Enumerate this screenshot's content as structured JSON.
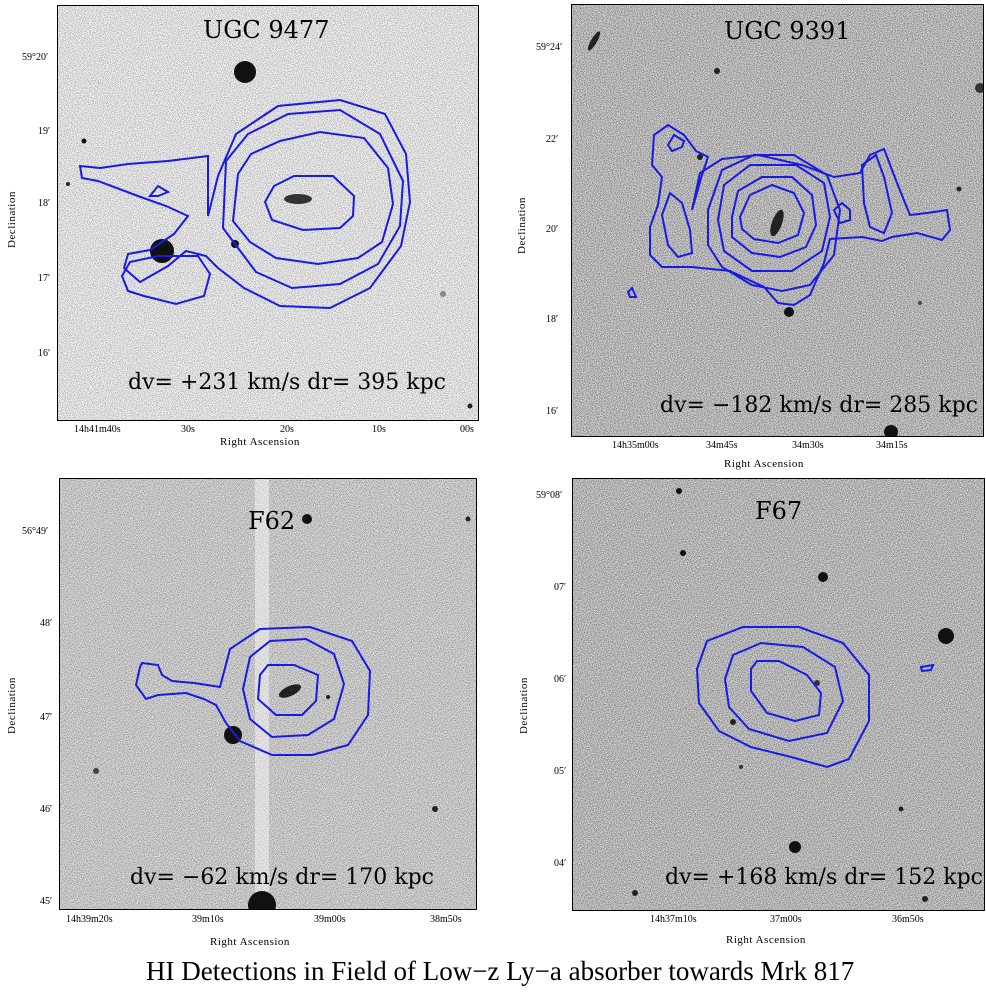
{
  "caption": "HI Detections in Field of Low−z Ly−a absorber towards Mrk 817",
  "contour_color": "#1a1ae6",
  "panels": [
    {
      "title": "UGC 9477",
      "measurement": "dv= +231 km/s  dr= 395 kpc",
      "xlabel": "Right Ascension",
      "ylabel": "Declination",
      "xticks": [
        "14h41m40s",
        "30s",
        "20s",
        "10s",
        "00s"
      ],
      "yticks": [
        "59°20′",
        "19′",
        "18′",
        "17′",
        "16′"
      ]
    },
    {
      "title": "UGC 9391",
      "measurement": "dv= −182 km/s  dr= 285 kpc",
      "xlabel": "Right Ascension",
      "ylabel": "Declination",
      "xticks": [
        "14h35m00s",
        "34m45s",
        "34m30s",
        "34m15s"
      ],
      "yticks": [
        "59°24′",
        "22′",
        "20′",
        "18′",
        "16′"
      ]
    },
    {
      "title": "F62",
      "measurement": "dv= −62 km/s  dr= 170 kpc",
      "xlabel": "Right Ascension",
      "ylabel": "Declination",
      "xticks": [
        "14h39m20s",
        "39m10s",
        "39m00s",
        "38m50s"
      ],
      "yticks": [
        "56°49′",
        "48′",
        "47′",
        "46′",
        "45′"
      ]
    },
    {
      "title": "F67",
      "measurement": "dv= +168 km/s  dr= 152 kpc",
      "xlabel": "Right Ascension",
      "ylabel": "Declination",
      "xticks": [
        "14h37m10s",
        "37m00s",
        "36m50s"
      ],
      "yticks": [
        "59°08′",
        "07′",
        "06′",
        "05′",
        "04′"
      ]
    }
  ]
}
